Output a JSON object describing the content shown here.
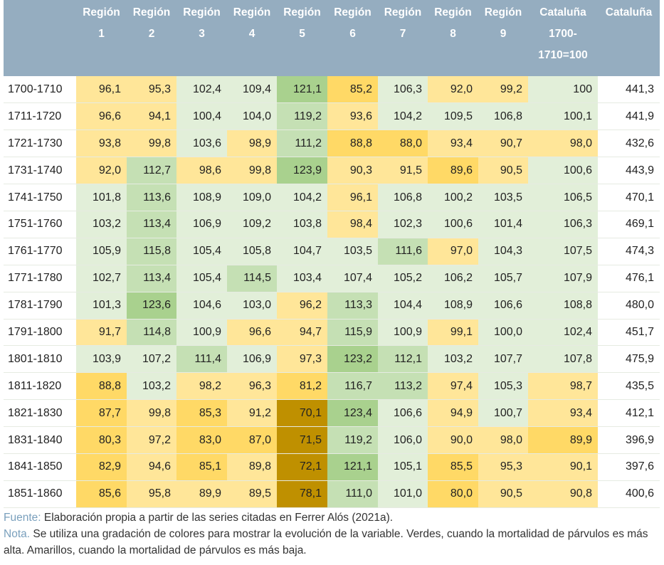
{
  "headers": [
    "",
    "Región 1",
    "Región 2",
    "Región 3",
    "Región 4",
    "Región 5",
    "Región 6",
    "Región 7",
    "Región 8",
    "Región 9",
    "Cataluña 1700-1710=100",
    "Cataluña"
  ],
  "header_lines": [
    [
      ""
    ],
    [
      "Región",
      "1"
    ],
    [
      "Región",
      "2"
    ],
    [
      "Región",
      "3"
    ],
    [
      "Región",
      "4"
    ],
    [
      "Región",
      "5"
    ],
    [
      "Región",
      "6"
    ],
    [
      "Región",
      "7"
    ],
    [
      "Región",
      "8"
    ],
    [
      "Región",
      "9"
    ],
    [
      "Cataluña",
      "1700-",
      "1710=100"
    ],
    [
      "Cataluña"
    ]
  ],
  "palette": {
    "header_bg": "#95adc0",
    "green_dark": "#a9d18e",
    "green_mid": "#c5e0b4",
    "green_light": "#e2efd9",
    "yellow_light": "#ffe699",
    "yellow_mid": "#ffd966",
    "brown": "#bf9000"
  },
  "rows": [
    {
      "period": "1700-1710",
      "values": [
        "96,1",
        "95,3",
        "102,4",
        "109,4",
        "121,1",
        "85,2",
        "106,3",
        "92,0",
        "99,2",
        "100"
      ],
      "colors": [
        "yellow_light",
        "yellow_light",
        "green_light",
        "green_light",
        "green_dark",
        "yellow_mid",
        "green_light",
        "yellow_light",
        "yellow_light",
        "green_light"
      ],
      "total": "441,3"
    },
    {
      "period": "1711-1720",
      "values": [
        "96,6",
        "94,1",
        "100,4",
        "104,0",
        "119,2",
        "93,6",
        "104,2",
        "109,5",
        "106,8",
        "100,1"
      ],
      "colors": [
        "yellow_light",
        "yellow_light",
        "green_light",
        "green_light",
        "green_mid",
        "yellow_light",
        "green_light",
        "green_light",
        "green_light",
        "green_light"
      ],
      "total": "441,9"
    },
    {
      "period": "1721-1730",
      "values": [
        "93,8",
        "99,8",
        "103,6",
        "98,9",
        "111,2",
        "88,8",
        "88,0",
        "93,4",
        "90,7",
        "98,0"
      ],
      "colors": [
        "yellow_light",
        "yellow_light",
        "green_light",
        "yellow_light",
        "green_mid",
        "yellow_mid",
        "yellow_mid",
        "yellow_light",
        "yellow_light",
        "yellow_light"
      ],
      "total": "432,6"
    },
    {
      "period": "1731-1740",
      "values": [
        "92,0",
        "112,7",
        "98,6",
        "99,8",
        "123,9",
        "90,3",
        "91,5",
        "89,6",
        "90,5",
        "100,6"
      ],
      "colors": [
        "yellow_light",
        "green_mid",
        "yellow_light",
        "yellow_light",
        "green_dark",
        "yellow_light",
        "yellow_light",
        "yellow_mid",
        "yellow_light",
        "green_light"
      ],
      "total": "443,9"
    },
    {
      "period": "1741-1750",
      "values": [
        "101,8",
        "113,6",
        "108,9",
        "109,0",
        "104,2",
        "96,1",
        "106,8",
        "100,2",
        "103,5",
        "106,5"
      ],
      "colors": [
        "green_light",
        "green_mid",
        "green_light",
        "green_light",
        "green_light",
        "yellow_light",
        "green_light",
        "green_light",
        "green_light",
        "green_light"
      ],
      "total": "470,1"
    },
    {
      "period": "1751-1760",
      "values": [
        "103,2",
        "113,4",
        "106,9",
        "109,2",
        "103,8",
        "98,4",
        "102,3",
        "100,6",
        "101,4",
        "106,3"
      ],
      "colors": [
        "green_light",
        "green_mid",
        "green_light",
        "green_light",
        "green_light",
        "yellow_light",
        "green_light",
        "green_light",
        "green_light",
        "green_light"
      ],
      "total": "469,1"
    },
    {
      "period": "1761-1770",
      "values": [
        "105,9",
        "115,8",
        "105,4",
        "105,8",
        "104,7",
        "103,5",
        "111,6",
        "97,0",
        "104,3",
        "107,5"
      ],
      "colors": [
        "green_light",
        "green_mid",
        "green_light",
        "green_light",
        "green_light",
        "green_light",
        "green_mid",
        "yellow_light",
        "green_light",
        "green_light"
      ],
      "total": "474,3"
    },
    {
      "period": "1771-1780",
      "values": [
        "102,7",
        "113,4",
        "105,4",
        "114,5",
        "103,4",
        "107,4",
        "105,2",
        "106,2",
        "105,7",
        "107,9"
      ],
      "colors": [
        "green_light",
        "green_mid",
        "green_light",
        "green_mid",
        "green_light",
        "green_light",
        "green_light",
        "green_light",
        "green_light",
        "green_light"
      ],
      "total": "476,1"
    },
    {
      "period": "1781-1790",
      "values": [
        "101,3",
        "123,6",
        "104,6",
        "103,0",
        "96,2",
        "113,3",
        "104,4",
        "108,9",
        "106,6",
        "108,8"
      ],
      "colors": [
        "green_light",
        "green_dark",
        "green_light",
        "green_light",
        "yellow_light",
        "green_mid",
        "green_light",
        "green_light",
        "green_light",
        "green_light"
      ],
      "total": "480,0"
    },
    {
      "period": "1791-1800",
      "values": [
        "91,7",
        "114,8",
        "100,9",
        "96,6",
        "94,7",
        "115,9",
        "100,9",
        "99,1",
        "100,0",
        "102,4"
      ],
      "colors": [
        "yellow_light",
        "green_mid",
        "green_light",
        "yellow_light",
        "yellow_light",
        "green_mid",
        "green_light",
        "yellow_light",
        "green_light",
        "green_light"
      ],
      "total": "451,7"
    },
    {
      "period": "1801-1810",
      "values": [
        "103,9",
        "107,2",
        "111,4",
        "106,9",
        "97,3",
        "123,2",
        "112,1",
        "103,2",
        "107,7",
        "107,8"
      ],
      "colors": [
        "green_light",
        "green_light",
        "green_mid",
        "green_light",
        "yellow_light",
        "green_dark",
        "green_mid",
        "green_light",
        "green_light",
        "green_light"
      ],
      "total": "475,9"
    },
    {
      "period": "1811-1820",
      "values": [
        "88,8",
        "103,2",
        "98,2",
        "96,3",
        "81,2",
        "116,7",
        "113,2",
        "97,4",
        "105,3",
        "98,7"
      ],
      "colors": [
        "yellow_mid",
        "green_light",
        "yellow_light",
        "yellow_light",
        "yellow_mid",
        "green_mid",
        "green_mid",
        "yellow_light",
        "green_light",
        "yellow_light"
      ],
      "total": "435,5"
    },
    {
      "period": "1821-1830",
      "values": [
        "87,7",
        "99,8",
        "85,3",
        "91,2",
        "70,1",
        "123,4",
        "106,6",
        "94,9",
        "100,7",
        "93,4"
      ],
      "colors": [
        "yellow_mid",
        "yellow_light",
        "yellow_mid",
        "yellow_light",
        "brown",
        "green_dark",
        "green_light",
        "yellow_light",
        "green_light",
        "yellow_light"
      ],
      "total": "412,1"
    },
    {
      "period": "1831-1840",
      "values": [
        "80,3",
        "97,2",
        "83,0",
        "87,0",
        "71,5",
        "119,2",
        "106,0",
        "90,0",
        "98,0",
        "89,9"
      ],
      "colors": [
        "yellow_mid",
        "yellow_light",
        "yellow_mid",
        "yellow_mid",
        "brown",
        "green_mid",
        "green_light",
        "yellow_light",
        "yellow_light",
        "yellow_mid"
      ],
      "total": "396,9"
    },
    {
      "period": "1841-1850",
      "values": [
        "82,9",
        "94,6",
        "85,1",
        "89,8",
        "72,1",
        "121,1",
        "105,1",
        "85,5",
        "95,3",
        "90,1"
      ],
      "colors": [
        "yellow_mid",
        "yellow_light",
        "yellow_mid",
        "yellow_light",
        "brown",
        "green_dark",
        "green_light",
        "yellow_mid",
        "yellow_light",
        "yellow_light"
      ],
      "total": "397,6"
    },
    {
      "period": "1851-1860",
      "values": [
        "85,6",
        "95,8",
        "89,9",
        "89,5",
        "78,1",
        "111,0",
        "101,0",
        "80,0",
        "90,5",
        "90,8"
      ],
      "colors": [
        "yellow_mid",
        "yellow_light",
        "yellow_light",
        "yellow_light",
        "brown",
        "green_mid",
        "green_light",
        "yellow_mid",
        "yellow_light",
        "yellow_light"
      ],
      "total": "400,6"
    }
  ],
  "notes": {
    "source_label": "Fuente:",
    "source_text": " Elaboración propia a partir de las series citadas en Ferrer Alós (2021a).",
    "note_label": "Nota.",
    "note_text": " Se utiliza una gradación de colores para mostrar la evolución de la variable. Verdes, cuando la mortalidad de párvulos es más alta. Amarillos, cuando la mortalidad de párvulos es más baja."
  }
}
